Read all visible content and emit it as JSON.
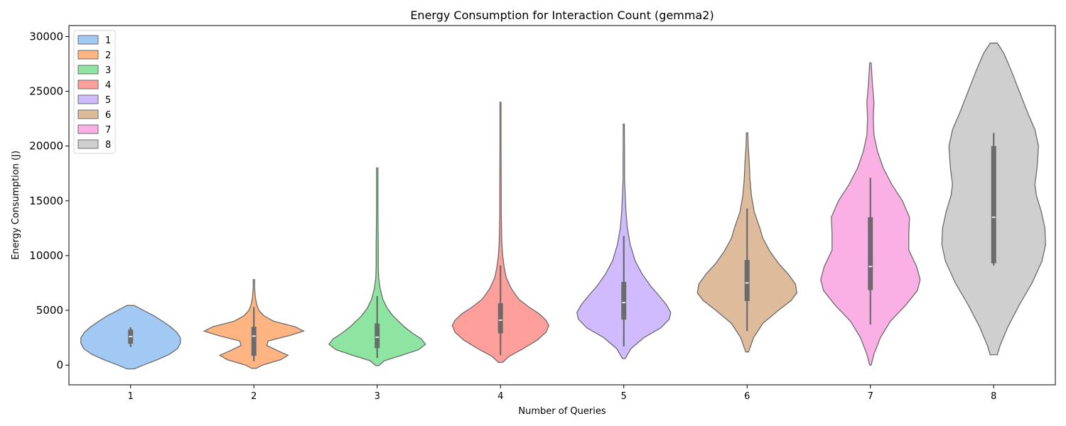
{
  "chart_data": {
    "type": "violin",
    "title": "Energy Consumption for Interaction Count (gemma2)",
    "xlabel": "Number of Queries",
    "ylabel": "Energy Consumption (J)",
    "categories": [
      "1",
      "2",
      "3",
      "4",
      "5",
      "6",
      "7",
      "8"
    ],
    "ylim": [
      -1800,
      31000
    ],
    "yticks": [
      0,
      5000,
      10000,
      15000,
      20000,
      25000,
      30000
    ],
    "ytick_labels": [
      "0",
      "5000",
      "10000",
      "15000",
      "20000",
      "25000",
      "30000"
    ],
    "legend": {
      "placement": "top-left",
      "entries": [
        "1",
        "2",
        "3",
        "4",
        "5",
        "6",
        "7",
        "8"
      ]
    },
    "grid": false,
    "series": [
      {
        "category": "1",
        "color": "#a1c9f4",
        "median": 2600,
        "q1": 1950,
        "q3": 3250,
        "whisker_low": 1650,
        "whisker_high": 3450,
        "density": [
          [
            -350,
            5
          ],
          [
            0,
            18
          ],
          [
            500,
            38
          ],
          [
            1000,
            55
          ],
          [
            1500,
            66
          ],
          [
            2000,
            70
          ],
          [
            2500,
            70
          ],
          [
            3000,
            65
          ],
          [
            3500,
            56
          ],
          [
            4000,
            45
          ],
          [
            4500,
            33
          ],
          [
            5000,
            18
          ],
          [
            5450,
            5
          ]
        ]
      },
      {
        "category": "2",
        "color": "#ffb482",
        "median": 2650,
        "q1": 850,
        "q3": 3500,
        "whisker_low": 350,
        "whisker_high": 5300,
        "density": [
          [
            -300,
            3
          ],
          [
            0,
            12
          ],
          [
            500,
            38
          ],
          [
            900,
            48
          ],
          [
            1300,
            34
          ],
          [
            1800,
            18
          ],
          [
            2200,
            20
          ],
          [
            2700,
            50
          ],
          [
            3100,
            70
          ],
          [
            3500,
            58
          ],
          [
            4000,
            28
          ],
          [
            4500,
            14
          ],
          [
            5000,
            7
          ],
          [
            5500,
            4
          ],
          [
            6200,
            2
          ],
          [
            7000,
            1
          ],
          [
            7800,
            1
          ]
        ]
      },
      {
        "category": "3",
        "color": "#8de5a1",
        "median": 2550,
        "q1": 1550,
        "q3": 3800,
        "whisker_low": 650,
        "whisker_high": 6300,
        "density": [
          [
            -50,
            2
          ],
          [
            400,
            10
          ],
          [
            900,
            35
          ],
          [
            1400,
            58
          ],
          [
            1900,
            68
          ],
          [
            2400,
            62
          ],
          [
            2900,
            50
          ],
          [
            3500,
            38
          ],
          [
            4000,
            30
          ],
          [
            4500,
            22
          ],
          [
            5200,
            14
          ],
          [
            6000,
            8
          ],
          [
            7000,
            4
          ],
          [
            8000,
            2
          ],
          [
            9000,
            1.5
          ],
          [
            10000,
            1.5
          ],
          [
            11000,
            1.5
          ],
          [
            12000,
            1.2
          ],
          [
            14000,
            1
          ],
          [
            16000,
            1
          ],
          [
            18000,
            1
          ]
        ]
      },
      {
        "category": "4",
        "color": "#ff9f9b",
        "median": 4100,
        "q1": 2900,
        "q3": 5650,
        "whisker_low": 900,
        "whisker_high": 9100,
        "density": [
          [
            250,
            3
          ],
          [
            800,
            12
          ],
          [
            1500,
            32
          ],
          [
            2300,
            52
          ],
          [
            3000,
            64
          ],
          [
            3600,
            68
          ],
          [
            4100,
            64
          ],
          [
            4700,
            54
          ],
          [
            5300,
            40
          ],
          [
            6000,
            26
          ],
          [
            7000,
            15
          ],
          [
            8000,
            8
          ],
          [
            9000,
            5
          ],
          [
            10000,
            3
          ],
          [
            11000,
            2
          ],
          [
            12000,
            1.5
          ],
          [
            14000,
            1
          ],
          [
            16000,
            1
          ],
          [
            20000,
            0.8
          ],
          [
            24000,
            0.8
          ]
        ]
      },
      {
        "category": "5",
        "color": "#d0bbff",
        "median": 5700,
        "q1": 4150,
        "q3": 7600,
        "whisker_low": 1700,
        "whisker_high": 11800,
        "density": [
          [
            600,
            2
          ],
          [
            1500,
            10
          ],
          [
            2500,
            28
          ],
          [
            3400,
            52
          ],
          [
            4200,
            64
          ],
          [
            4800,
            66
          ],
          [
            5500,
            60
          ],
          [
            6300,
            50
          ],
          [
            7200,
            38
          ],
          [
            8300,
            26
          ],
          [
            9500,
            16
          ],
          [
            11000,
            9
          ],
          [
            12500,
            5
          ],
          [
            14000,
            3
          ],
          [
            15500,
            2
          ],
          [
            17000,
            1
          ],
          [
            19000,
            1
          ],
          [
            22000,
            0.8
          ]
        ]
      },
      {
        "category": "6",
        "color": "#debb9b",
        "median": 7500,
        "q1": 5850,
        "q3": 9600,
        "whisker_low": 3100,
        "whisker_high": 14300,
        "density": [
          [
            1200,
            2
          ],
          [
            2500,
            9
          ],
          [
            3800,
            22
          ],
          [
            5000,
            44
          ],
          [
            5900,
            62
          ],
          [
            6600,
            70
          ],
          [
            7400,
            68
          ],
          [
            8300,
            58
          ],
          [
            9300,
            44
          ],
          [
            10400,
            32
          ],
          [
            11600,
            22
          ],
          [
            12500,
            18
          ],
          [
            14000,
            10
          ],
          [
            15500,
            6
          ],
          [
            17000,
            4
          ],
          [
            18500,
            3
          ],
          [
            20000,
            1.5
          ],
          [
            21200,
            1
          ]
        ]
      },
      {
        "category": "7",
        "color": "#fab0e4",
        "median": 9000,
        "q1": 6850,
        "q3": 13500,
        "whisker_low": 3700,
        "whisker_high": 17100,
        "density": [
          [
            0,
            1
          ],
          [
            1000,
            5
          ],
          [
            2500,
            14
          ],
          [
            4000,
            28
          ],
          [
            5500,
            50
          ],
          [
            6800,
            66
          ],
          [
            7800,
            70
          ],
          [
            9000,
            65
          ],
          [
            10500,
            54
          ],
          [
            12000,
            54
          ],
          [
            13500,
            55
          ],
          [
            15000,
            45
          ],
          [
            16500,
            30
          ],
          [
            18000,
            18
          ],
          [
            19500,
            10
          ],
          [
            21000,
            5
          ],
          [
            22500,
            4
          ],
          [
            24000,
            5
          ],
          [
            25500,
            3
          ],
          [
            27600,
            1
          ]
        ]
      },
      {
        "category": "8",
        "color": "#cfcfcf",
        "median": 13500,
        "q1": 9300,
        "q3": 20000,
        "whisker_low": 9100,
        "whisker_high": 21200,
        "density": [
          [
            950,
            5
          ],
          [
            1800,
            9
          ],
          [
            3500,
            20
          ],
          [
            5500,
            36
          ],
          [
            7500,
            54
          ],
          [
            9500,
            68
          ],
          [
            11000,
            73
          ],
          [
            12500,
            72
          ],
          [
            14000,
            67
          ],
          [
            15500,
            60
          ],
          [
            16500,
            58
          ],
          [
            18000,
            61
          ],
          [
            20000,
            63
          ],
          [
            21500,
            58
          ],
          [
            23000,
            48
          ],
          [
            25000,
            36
          ],
          [
            27000,
            24
          ],
          [
            28500,
            14
          ],
          [
            29400,
            5
          ]
        ]
      }
    ]
  }
}
